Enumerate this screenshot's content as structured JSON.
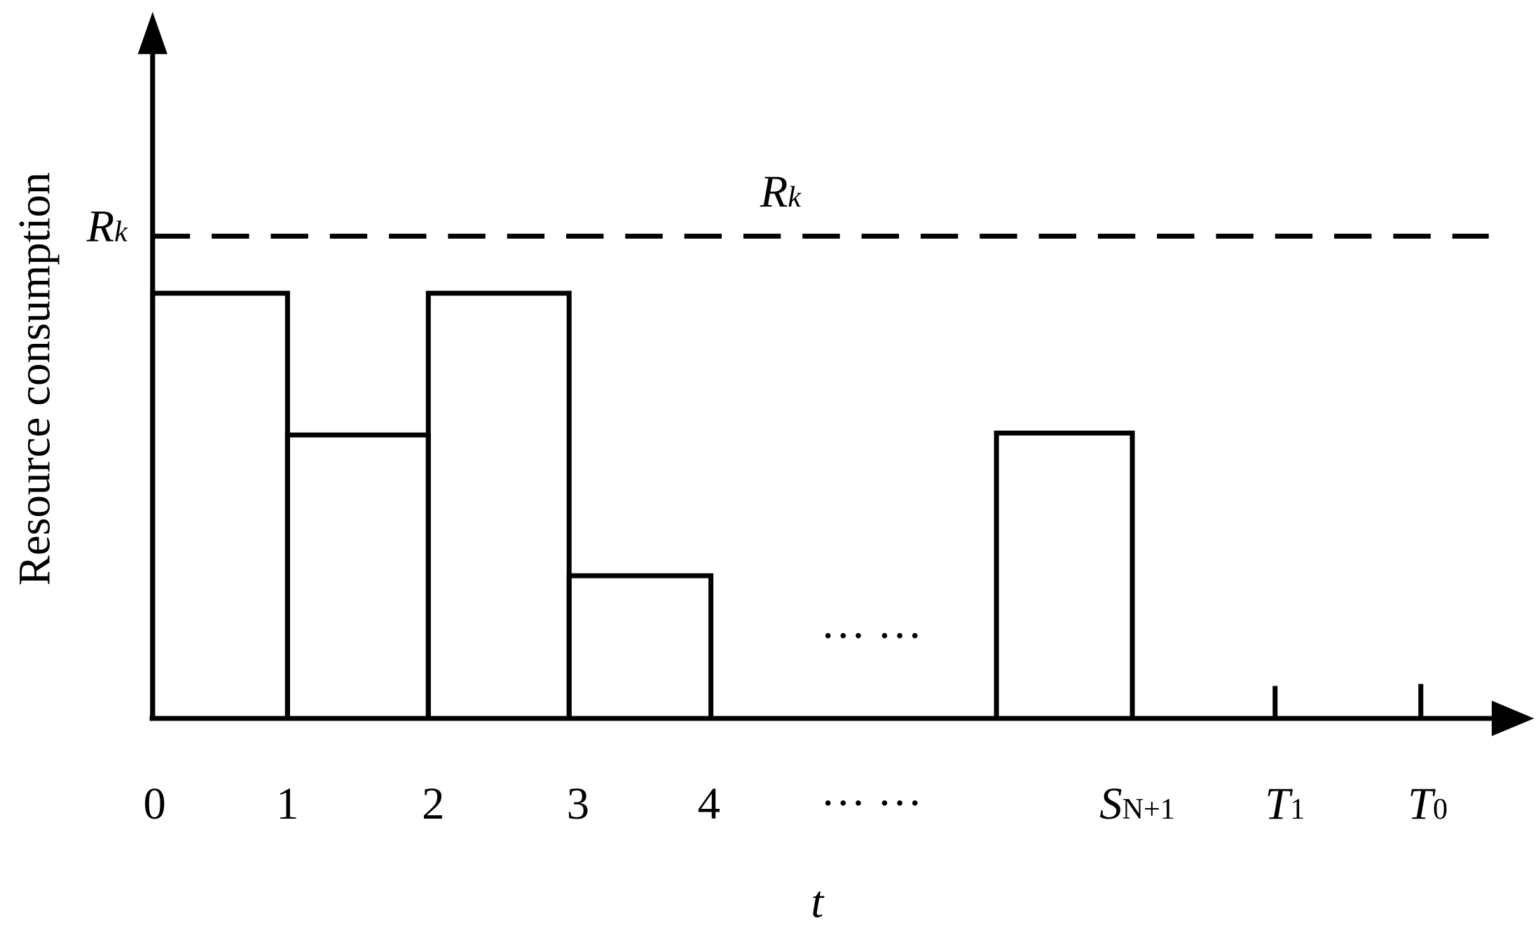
{
  "y_axis_label": "Resource consumption",
  "x_axis_label": "t",
  "threshold": {
    "axis_label": {
      "main": "R",
      "sub": "k"
    },
    "line_label": {
      "main": "R",
      "sub": "k"
    }
  },
  "ellipsis": {
    "plot": "… …",
    "axis": "… …"
  },
  "x_tick_labels": [
    {
      "main": "0"
    },
    {
      "main": "1"
    },
    {
      "main": "2"
    },
    {
      "main": "3"
    },
    {
      "main": "4"
    },
    {
      "main": "S",
      "sub": "N+1"
    },
    {
      "main": "T",
      "sub": "1"
    },
    {
      "main": "T",
      "sub": "0"
    }
  ]
}
